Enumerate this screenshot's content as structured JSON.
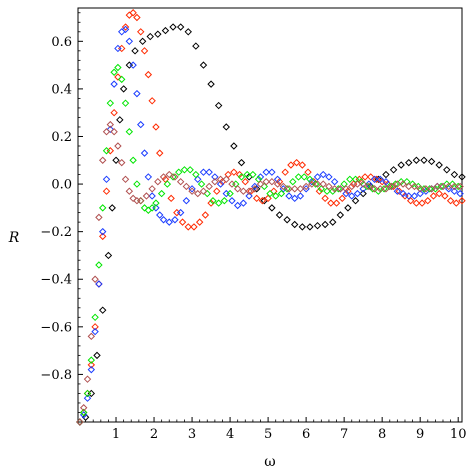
{
  "chart_data": {
    "type": "scatter",
    "title": "",
    "xlabel": "ω",
    "ylabel": "R",
    "xlim": [
      0,
      10.1
    ],
    "ylim": [
      -1.0,
      0.74
    ],
    "x_ticks": [
      "1",
      "2",
      "3",
      "4",
      "5",
      "6",
      "7",
      "8",
      "9",
      "10"
    ],
    "y_ticks": [
      "0.6",
      "0.4",
      "0.2",
      "0.0",
      "−0.2",
      "−0.4",
      "−0.6",
      "−0.8"
    ],
    "x_tick_values": [
      1,
      2,
      3,
      4,
      5,
      6,
      7,
      8,
      9,
      10
    ],
    "y_tick_values": [
      0.6,
      0.4,
      0.2,
      0.0,
      -0.2,
      -0.4,
      -0.6,
      -0.8
    ],
    "marker": "diamond-open",
    "grid": false,
    "series": [
      {
        "color": "#000000",
        "x": [
          0.05,
          0.2,
          0.35,
          0.5,
          0.65,
          0.8,
          0.9,
          1.0,
          1.1,
          1.2,
          1.35,
          1.5,
          1.7,
          1.9,
          2.1,
          2.3,
          2.5,
          2.7,
          2.9,
          3.1,
          3.3,
          3.5,
          3.7,
          3.9,
          4.1,
          4.3,
          4.5,
          4.7,
          4.9,
          5.1,
          5.3,
          5.5,
          5.7,
          5.9,
          6.1,
          6.3,
          6.5,
          6.7,
          6.9,
          7.1,
          7.3,
          7.5,
          7.7,
          7.9,
          8.1,
          8.3,
          8.5,
          8.7,
          8.9,
          9.1,
          9.3,
          9.5,
          9.7,
          9.9,
          10.1
        ],
        "y": [
          -1.0,
          -0.98,
          -0.88,
          -0.72,
          -0.53,
          -0.3,
          -0.1,
          0.1,
          0.27,
          0.4,
          0.5,
          0.56,
          0.6,
          0.62,
          0.63,
          0.645,
          0.66,
          0.66,
          0.64,
          0.58,
          0.5,
          0.42,
          0.33,
          0.24,
          0.16,
          0.09,
          0.03,
          -0.02,
          -0.07,
          -0.1,
          -0.13,
          -0.15,
          -0.17,
          -0.18,
          -0.18,
          -0.175,
          -0.17,
          -0.16,
          -0.13,
          -0.1,
          -0.07,
          -0.04,
          -0.01,
          0.02,
          0.04,
          0.06,
          0.08,
          0.09,
          0.1,
          0.1,
          0.095,
          0.08,
          0.06,
          0.04,
          0.03
        ]
      },
      {
        "color": "#ff2a00",
        "x": [
          0.05,
          0.15,
          0.25,
          0.35,
          0.45,
          0.55,
          0.65,
          0.75,
          0.85,
          0.95,
          1.05,
          1.15,
          1.25,
          1.35,
          1.45,
          1.55,
          1.65,
          1.75,
          1.85,
          1.95,
          2.05,
          2.15,
          2.3,
          2.45,
          2.6,
          2.75,
          2.9,
          3.05,
          3.2,
          3.35,
          3.5,
          3.65,
          3.8,
          3.95,
          4.1,
          4.25,
          4.4,
          4.55,
          4.7,
          4.85,
          5.0,
          5.15,
          5.3,
          5.45,
          5.6,
          5.75,
          5.9,
          6.05,
          6.2,
          6.35,
          6.5,
          6.65,
          6.8,
          6.95,
          7.1,
          7.25,
          7.4,
          7.55,
          7.7,
          7.85,
          8.0,
          8.15,
          8.3,
          8.45,
          8.6,
          8.75,
          8.9,
          9.05,
          9.2,
          9.35,
          9.5,
          9.65,
          9.8,
          9.95,
          10.1
        ],
        "y": [
          -1.0,
          -0.96,
          -0.88,
          -0.76,
          -0.6,
          -0.42,
          -0.22,
          -0.03,
          0.14,
          0.3,
          0.45,
          0.57,
          0.66,
          0.71,
          0.72,
          0.7,
          0.64,
          0.56,
          0.46,
          0.35,
          0.24,
          0.13,
          0.02,
          -0.06,
          -0.12,
          -0.16,
          -0.18,
          -0.18,
          -0.16,
          -0.13,
          -0.08,
          -0.03,
          0.01,
          0.04,
          0.05,
          0.04,
          0.01,
          -0.03,
          -0.06,
          -0.07,
          -0.06,
          -0.03,
          0.01,
          0.05,
          0.08,
          0.09,
          0.08,
          0.05,
          0.01,
          -0.03,
          -0.06,
          -0.08,
          -0.08,
          -0.06,
          -0.03,
          0.0,
          0.02,
          0.03,
          0.03,
          0.02,
          0.01,
          0.0,
          -0.01,
          -0.03,
          -0.05,
          -0.07,
          -0.08,
          -0.08,
          -0.07,
          -0.05,
          -0.04,
          -0.05,
          -0.07,
          -0.08,
          -0.07
        ]
      },
      {
        "color": "#1a3cff",
        "x": [
          0.05,
          0.15,
          0.25,
          0.35,
          0.45,
          0.55,
          0.65,
          0.75,
          0.85,
          0.95,
          1.05,
          1.15,
          1.25,
          1.35,
          1.45,
          1.55,
          1.65,
          1.75,
          1.85,
          1.95,
          2.05,
          2.15,
          2.25,
          2.4,
          2.55,
          2.7,
          2.85,
          3.0,
          3.15,
          3.3,
          3.45,
          3.6,
          3.75,
          3.9,
          4.05,
          4.2,
          4.35,
          4.5,
          4.65,
          4.8,
          4.95,
          5.1,
          5.25,
          5.4,
          5.55,
          5.7,
          5.85,
          6.0,
          6.15,
          6.3,
          6.45,
          6.6,
          6.75,
          6.9,
          7.05,
          7.2,
          7.35,
          7.5,
          7.65,
          7.8,
          7.95,
          8.1,
          8.25,
          8.4,
          8.55,
          8.7,
          8.85,
          9.0,
          9.15,
          9.3,
          9.45,
          9.6,
          9.75,
          9.9,
          10.05
        ],
        "y": [
          -1.0,
          -0.97,
          -0.9,
          -0.78,
          -0.62,
          -0.42,
          -0.2,
          0.02,
          0.23,
          0.42,
          0.57,
          0.64,
          0.65,
          0.6,
          0.5,
          0.38,
          0.25,
          0.13,
          0.03,
          -0.05,
          -0.1,
          -0.13,
          -0.15,
          -0.16,
          -0.15,
          -0.12,
          -0.07,
          -0.02,
          0.02,
          0.05,
          0.05,
          0.03,
          0.0,
          -0.04,
          -0.07,
          -0.09,
          -0.08,
          -0.05,
          -0.01,
          0.03,
          0.05,
          0.05,
          0.02,
          -0.02,
          -0.05,
          -0.06,
          -0.05,
          -0.02,
          0.01,
          0.03,
          0.04,
          0.03,
          0.01,
          -0.02,
          -0.04,
          -0.05,
          -0.04,
          -0.02,
          0.0,
          0.02,
          0.02,
          0.01,
          -0.01,
          -0.03,
          -0.04,
          -0.05,
          -0.05,
          -0.04,
          -0.03,
          -0.02,
          -0.01,
          -0.01,
          -0.02,
          -0.03,
          -0.04
        ]
      },
      {
        "color": "#00e600",
        "x": [
          0.05,
          0.15,
          0.25,
          0.35,
          0.45,
          0.55,
          0.65,
          0.75,
          0.85,
          0.95,
          1.05,
          1.15,
          1.25,
          1.35,
          1.45,
          1.55,
          1.65,
          1.75,
          1.85,
          1.95,
          2.05,
          2.2,
          2.35,
          2.5,
          2.65,
          2.8,
          2.95,
          3.1,
          3.25,
          3.4,
          3.55,
          3.7,
          3.85,
          4.0,
          4.15,
          4.3,
          4.45,
          4.6,
          4.75,
          4.9,
          5.05,
          5.2,
          5.35,
          5.5,
          5.65,
          5.8,
          5.95,
          6.1,
          6.25,
          6.4,
          6.55,
          6.7,
          6.85,
          7.0,
          7.15,
          7.3,
          7.45,
          7.6,
          7.75,
          7.9,
          8.05,
          8.2,
          8.35,
          8.5,
          8.65,
          8.8,
          8.95,
          9.1,
          9.25,
          9.4,
          9.55,
          9.7,
          9.85,
          10.0
        ],
        "y": [
          -1.0,
          -0.96,
          -0.88,
          -0.74,
          -0.56,
          -0.34,
          -0.1,
          0.14,
          0.34,
          0.47,
          0.49,
          0.44,
          0.34,
          0.22,
          0.1,
          0.0,
          -0.07,
          -0.1,
          -0.11,
          -0.1,
          -0.08,
          -0.04,
          0.0,
          0.03,
          0.05,
          0.06,
          0.06,
          0.04,
          0.0,
          -0.04,
          -0.07,
          -0.08,
          -0.07,
          -0.04,
          0.0,
          0.03,
          0.04,
          0.04,
          0.02,
          -0.01,
          -0.04,
          -0.05,
          -0.04,
          -0.02,
          0.01,
          0.03,
          0.03,
          0.02,
          0.0,
          -0.02,
          -0.03,
          -0.03,
          -0.02,
          0.0,
          0.02,
          0.02,
          0.01,
          -0.01,
          -0.02,
          -0.03,
          -0.02,
          -0.01,
          0.0,
          0.01,
          0.01,
          0.0,
          -0.01,
          -0.02,
          -0.02,
          -0.02,
          -0.01,
          0.0,
          0.0,
          -0.01
        ]
      },
      {
        "color": "#b05050",
        "x": [
          0.05,
          0.15,
          0.25,
          0.35,
          0.45,
          0.55,
          0.65,
          0.75,
          0.85,
          0.95,
          1.05,
          1.15,
          1.25,
          1.35,
          1.45,
          1.55,
          1.65,
          1.8,
          1.95,
          2.1,
          2.25,
          2.4,
          2.55,
          2.7,
          2.85,
          3.0,
          3.15,
          3.3,
          3.45,
          3.6,
          3.75,
          3.9,
          4.05,
          4.2,
          4.35,
          4.5,
          4.65,
          4.8,
          4.95,
          5.1,
          5.25,
          5.4,
          5.55,
          5.7,
          5.85,
          6.0,
          6.15,
          6.3,
          6.45,
          6.6,
          6.75,
          6.9,
          7.05,
          7.2,
          7.35,
          7.5,
          7.65,
          7.8,
          7.95,
          8.1,
          8.25,
          8.4,
          8.55,
          8.7,
          8.85,
          9.0,
          9.15,
          9.3,
          9.45,
          9.6,
          9.75,
          9.9,
          10.05
        ],
        "y": [
          -1.0,
          -0.94,
          -0.82,
          -0.64,
          -0.4,
          -0.14,
          0.1,
          0.22,
          0.25,
          0.22,
          0.16,
          0.09,
          0.02,
          -0.03,
          -0.06,
          -0.07,
          -0.07,
          -0.05,
          -0.02,
          0.01,
          0.03,
          0.04,
          0.03,
          0.01,
          -0.01,
          -0.03,
          -0.04,
          -0.03,
          -0.01,
          0.01,
          0.02,
          0.02,
          0.0,
          -0.02,
          -0.03,
          -0.03,
          -0.02,
          0.0,
          0.01,
          0.01,
          0.0,
          -0.01,
          -0.02,
          -0.02,
          -0.02,
          -0.01,
          0.0,
          0.0,
          0.0,
          -0.01,
          -0.02,
          -0.02,
          -0.02,
          -0.01,
          0.0,
          0.0,
          -0.01,
          -0.02,
          -0.02,
          -0.02,
          -0.01,
          0.0,
          0.0,
          -0.01,
          -0.01,
          -0.02,
          -0.02,
          -0.02,
          -0.01,
          -0.01,
          -0.01,
          -0.01,
          -0.01
        ]
      }
    ]
  }
}
